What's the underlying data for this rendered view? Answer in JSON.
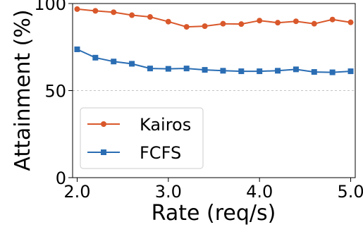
{
  "chart_data": {
    "type": "line",
    "xlabel": "Rate (req/s)",
    "ylabel": "Attainment (%)",
    "xlim": [
      1.95,
      5.05
    ],
    "ylim": [
      0,
      100
    ],
    "xticks": [
      "2.0",
      "3.0",
      "4.0",
      "5.0"
    ],
    "yticks": [
      "0",
      "50",
      "100"
    ],
    "grid": "horizontal dashed at 50 and 100",
    "legend_position": "lower-left",
    "x": [
      2.0,
      2.2,
      2.4,
      2.6,
      2.8,
      3.0,
      3.2,
      3.4,
      3.6,
      3.8,
      4.0,
      4.2,
      4.4,
      4.6,
      4.8,
      5.0
    ],
    "series": [
      {
        "name": "Kairos",
        "color": "#d9582b",
        "marker": "circle",
        "values": [
          96.8,
          95.8,
          95.0,
          93.3,
          92.3,
          89.6,
          86.6,
          87.0,
          88.4,
          88.2,
          90.2,
          89.0,
          89.8,
          88.4,
          90.8,
          89.2
        ]
      },
      {
        "name": "FCFS",
        "color": "#2a6db3",
        "marker": "square",
        "values": [
          73.7,
          68.9,
          66.7,
          65.4,
          62.7,
          62.5,
          62.7,
          61.9,
          61.4,
          61.1,
          61.1,
          61.4,
          62.2,
          60.7,
          60.5,
          61.1
        ]
      }
    ]
  }
}
